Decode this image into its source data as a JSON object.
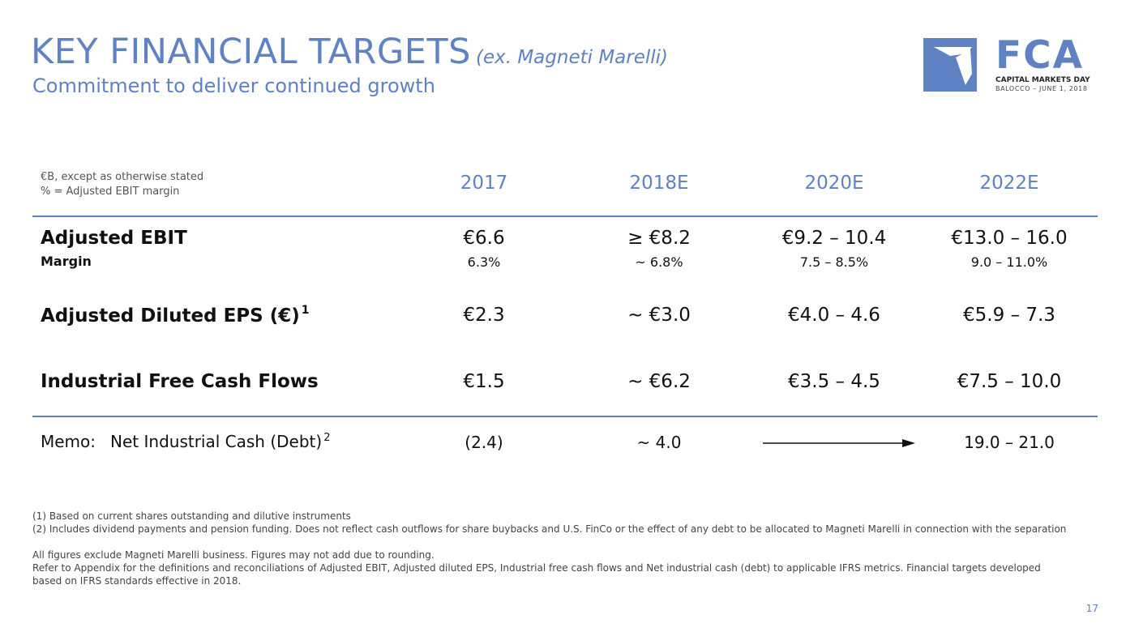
{
  "header": {
    "title": "KEY FINANCIAL TARGETS",
    "title_note": "(ex. Magneti Marelli)",
    "subtitle": "Commitment to deliver continued growth"
  },
  "logo": {
    "wordmark": "FCA",
    "event": "CAPITAL MARKETS DAY",
    "location_date": "BALOCCO – JUNE 1, 2018"
  },
  "table": {
    "notes": [
      "€B, except as otherwise stated",
      "% = Adjusted EBIT margin"
    ],
    "years": [
      "2017",
      "2018E",
      "2020E",
      "2022E"
    ],
    "adjusted_ebit": {
      "label": "Adjusted EBIT",
      "values": [
        "€6.6",
        "≥ €8.2",
        "€9.2 – 10.4",
        "€13.0 – 16.0"
      ]
    },
    "margin": {
      "label": "Margin",
      "values": [
        "6.3%",
        "~ 6.8%",
        "7.5 – 8.5%",
        "9.0 – 11.0%"
      ]
    },
    "adjusted_eps": {
      "label": "Adjusted Diluted EPS (€)",
      "footnote": "1",
      "values": [
        "€2.3",
        "~ €3.0",
        "€4.0 – 4.6",
        "€5.9 – 7.3"
      ]
    },
    "free_cash_flows": {
      "label": "Industrial Free Cash Flows",
      "values": [
        "€1.5",
        "~ €6.2",
        "€3.5 – 4.5",
        "€7.5 – 10.0"
      ]
    },
    "memo": {
      "prefix": "Memo:",
      "label": "Net Industrial Cash (Debt)",
      "footnote": "2",
      "values": [
        "(2.4)",
        "~ 4.0",
        "19.0 – 21.0"
      ]
    }
  },
  "footnotes": [
    "(1) Based on current shares outstanding and dilutive instruments",
    "(2) Includes dividend payments and pension funding. Does not reflect cash outflows for share buybacks and U.S. FinCo or the effect of any debt to be allocated to Magneti Marelli in connection with the separation"
  ],
  "disclaimer": [
    "All figures exclude Magneti Marelli business. Figures may not add due to rounding.",
    "Refer to Appendix for the definitions and reconciliations of Adjusted EBIT, Adjusted diluted EPS, Industrial free cash flows and Net industrial cash (debt) to applicable IFRS metrics.  Financial targets developed",
    "based on IFRS standards effective in 2018."
  ],
  "page_number": "17",
  "colors": {
    "accent": "#5e82c4",
    "text": "#111111"
  },
  "icons": {
    "arrow": "right-arrow-icon",
    "logo": "fca-logo-mark-icon"
  }
}
